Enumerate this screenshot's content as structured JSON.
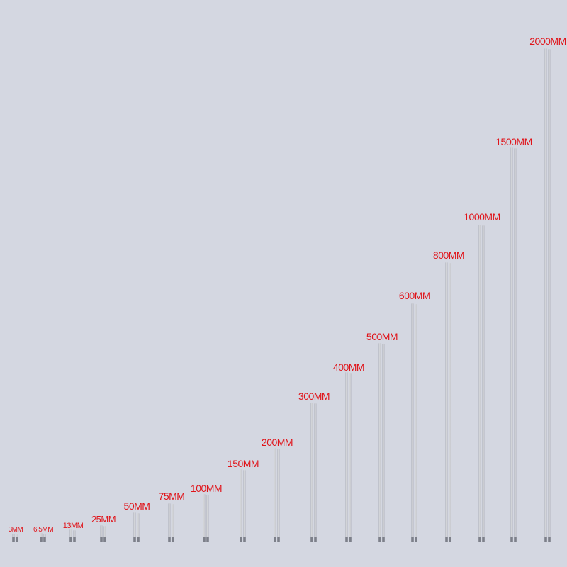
{
  "items": [
    {
      "label": "3MM"
    },
    {
      "label": "6.5MM"
    },
    {
      "label": "13MM"
    },
    {
      "label": "25MM"
    },
    {
      "label": "50MM"
    },
    {
      "label": "75MM"
    },
    {
      "label": "100MM"
    },
    {
      "label": "150MM"
    },
    {
      "label": "200MM"
    },
    {
      "label": "300MM"
    },
    {
      "label": "400MM"
    },
    {
      "label": "500MM"
    },
    {
      "label": "600MM"
    },
    {
      "label": "800MM"
    },
    {
      "label": "1000MM"
    },
    {
      "label": "1500MM"
    },
    {
      "label": "2000MM"
    }
  ]
}
